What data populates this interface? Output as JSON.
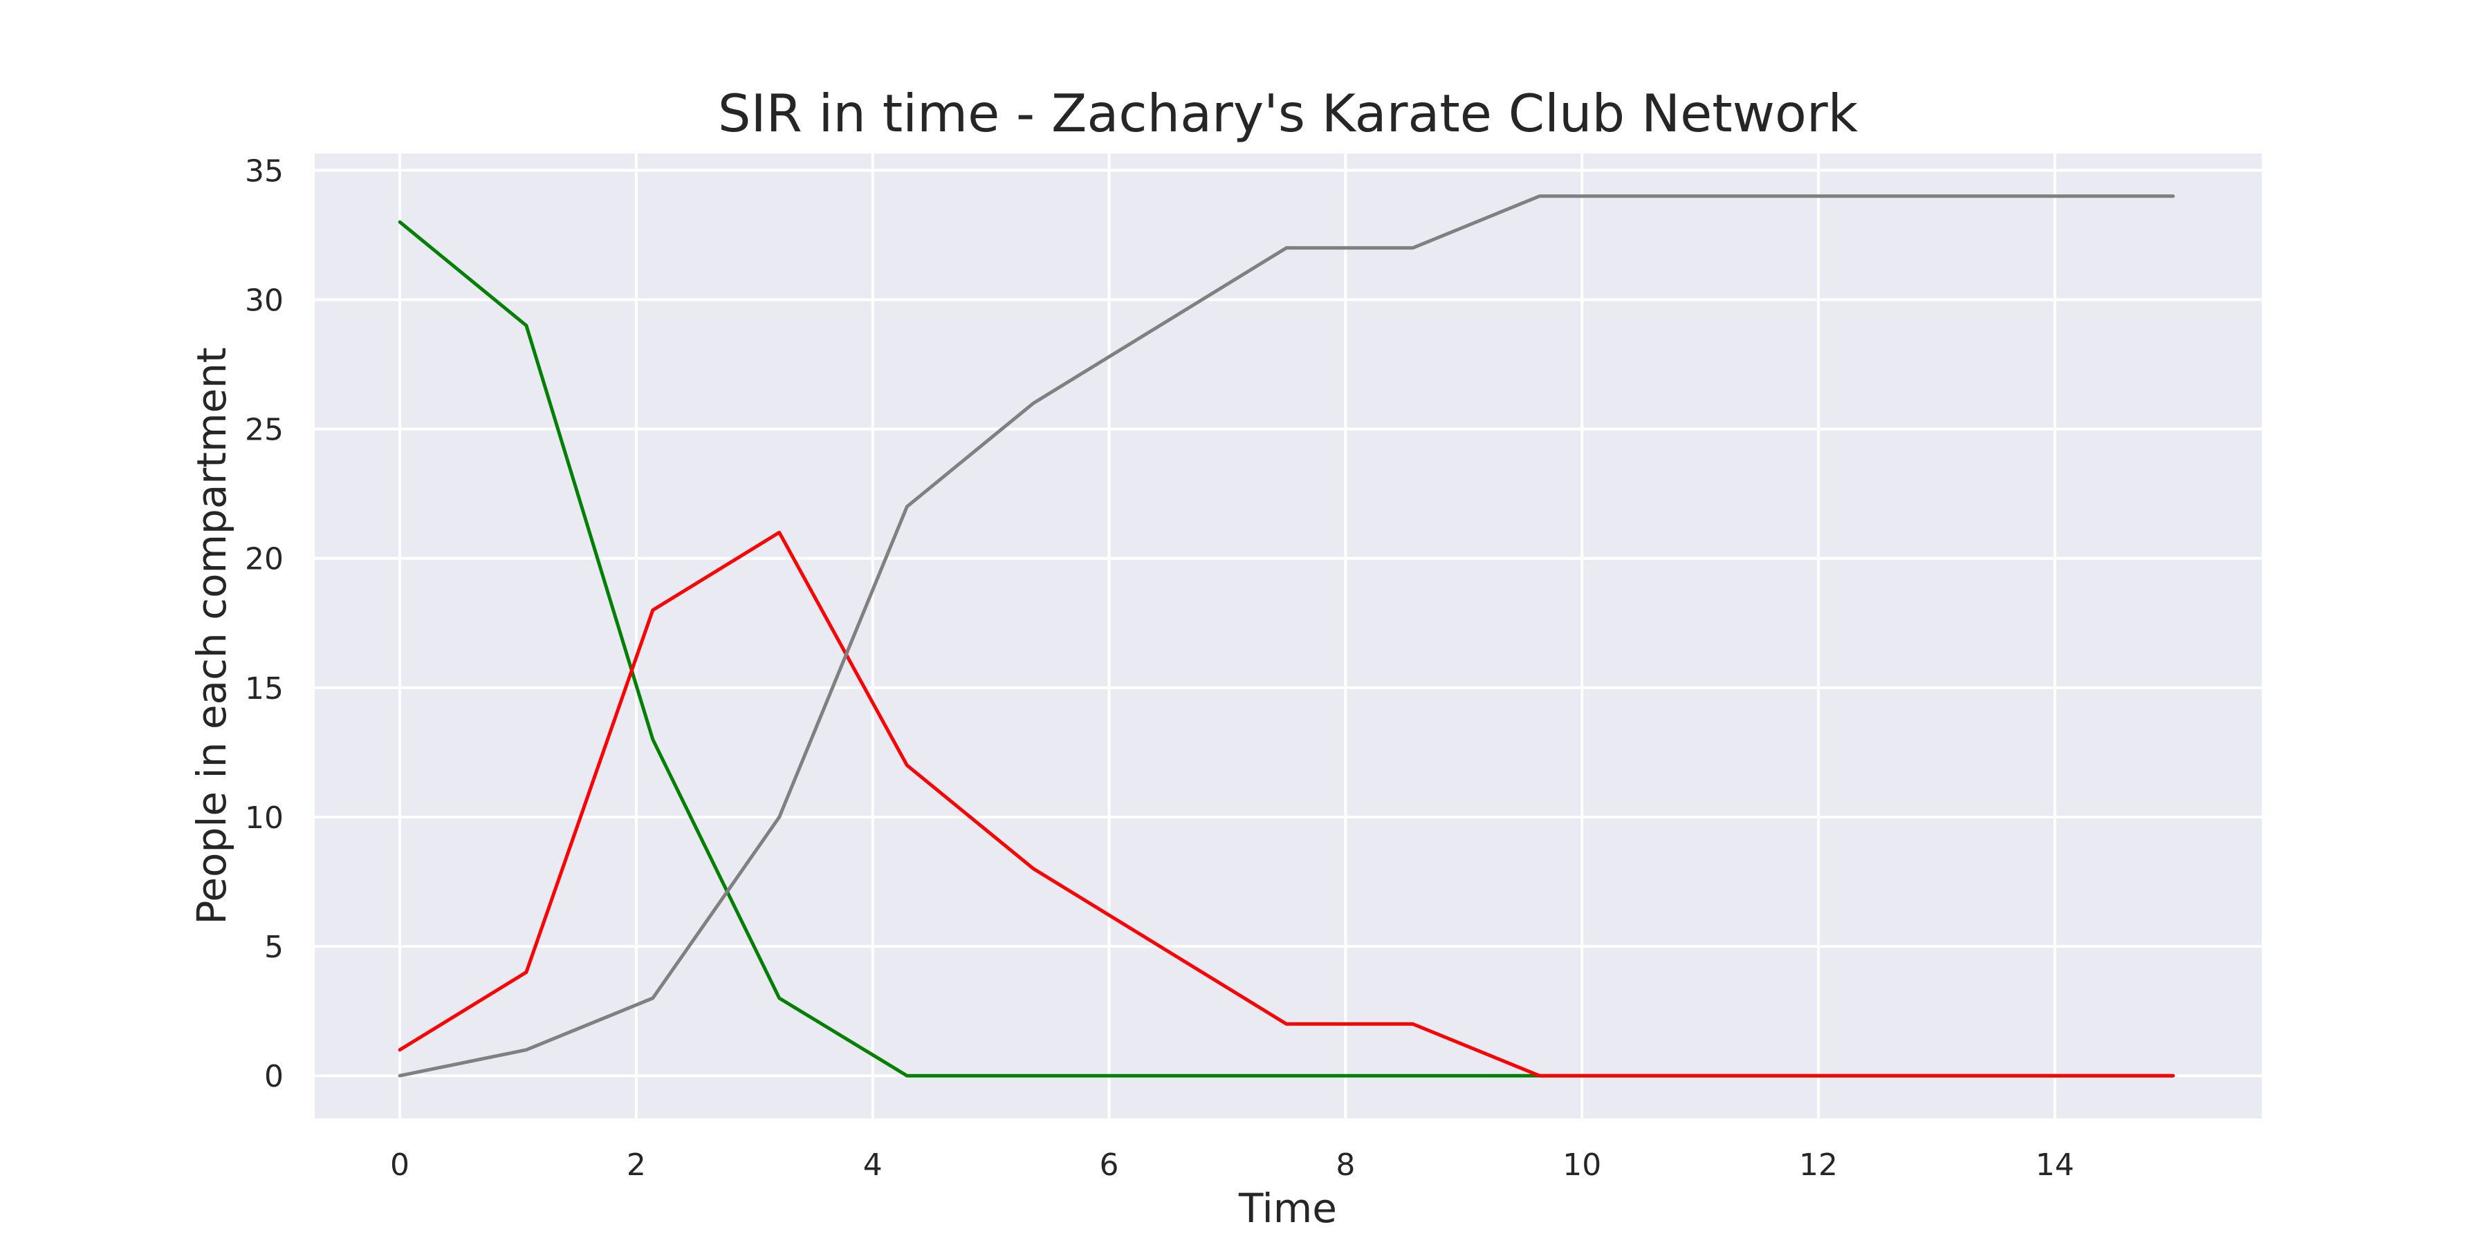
{
  "chart_data": {
    "type": "line",
    "title": "SIR in time - Zachary's Karate Club Network",
    "xlabel": "Time",
    "ylabel": "People in each compartment",
    "xlim": [
      -0.72,
      15.75
    ],
    "ylim": [
      -1.65,
      35.65
    ],
    "grid": true,
    "legend": "none",
    "xticks": [
      0,
      2,
      4,
      6,
      8,
      10,
      12,
      14
    ],
    "xtick_labels": [
      "0",
      "2",
      "4",
      "6",
      "8",
      "10",
      "12",
      "14"
    ],
    "yticks": [
      0,
      5,
      10,
      15,
      20,
      25,
      30,
      35
    ],
    "ytick_labels": [
      "0",
      "5",
      "10",
      "15",
      "20",
      "25",
      "30",
      "35"
    ],
    "x": [
      0,
      1.07,
      2.14,
      3.21,
      4.29,
      5.36,
      6.43,
      7.5,
      8.57,
      9.64,
      10.71,
      11.79,
      12.86,
      13.93,
      15
    ],
    "series": [
      {
        "color": "#008000",
        "values": [
          33,
          29,
          13,
          3,
          0,
          0,
          0,
          0,
          0,
          0,
          0,
          0,
          0,
          0,
          0
        ]
      },
      {
        "color": "#ff0000",
        "values": [
          1,
          4,
          18,
          21,
          12,
          8,
          5,
          2,
          2,
          0,
          0,
          0,
          0,
          0,
          0
        ]
      },
      {
        "color": "#808080",
        "values": [
          0,
          1,
          3,
          10,
          22,
          26,
          29,
          32,
          32,
          34,
          34,
          34,
          34,
          34,
          34
        ]
      }
    ]
  }
}
